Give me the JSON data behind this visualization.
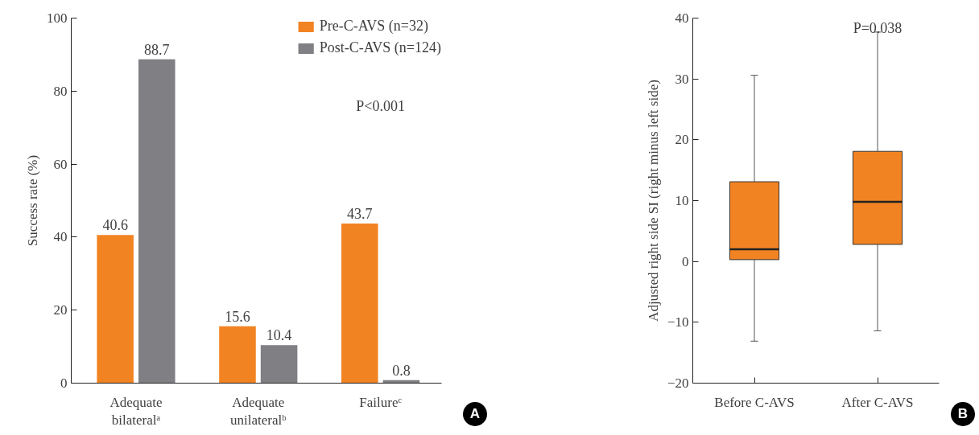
{
  "chart_data": [
    {
      "type": "bar",
      "ylabel": "Success rate (%)",
      "categories": [
        "Adequate bilateralᵃ",
        "Adequate unilateralᵇ",
        "Failureᶜ"
      ],
      "series": [
        {
          "name": "Pre-C-AVS (n=32)",
          "color": "#f28322",
          "values": [
            40.6,
            15.6,
            43.7
          ]
        },
        {
          "name": "Post-C-AVS (n=124)",
          "color": "#7f7f84",
          "values": [
            88.7,
            10.4,
            0.8
          ]
        }
      ],
      "ylim": [
        0,
        100
      ],
      "yticks": [
        0,
        20,
        40,
        60,
        80,
        100
      ],
      "data_labels": true,
      "grid": false,
      "legend": "top right",
      "annotations": [
        "P<0.001",
        "A"
      ]
    },
    {
      "type": "box",
      "ylabel": "Adjusted right side SI (right minus left side)",
      "categories": [
        "Before C-AVS",
        "After C-AVS"
      ],
      "series": [
        {
          "color": "#f28322",
          "boxes": [
            {
              "low": -13.1,
              "q1": 0.3,
              "median": 2.0,
              "q3": 13.1,
              "high": 30.6
            },
            {
              "low": -11.4,
              "q1": 2.8,
              "median": 9.8,
              "q3": 18.1,
              "high": 37.7
            }
          ]
        }
      ],
      "ylim": [
        -20,
        40
      ],
      "yticks": [
        -20,
        -10,
        0,
        10,
        20,
        30,
        40
      ],
      "grid": false,
      "annotations": [
        "P=0.038",
        "B"
      ]
    }
  ]
}
